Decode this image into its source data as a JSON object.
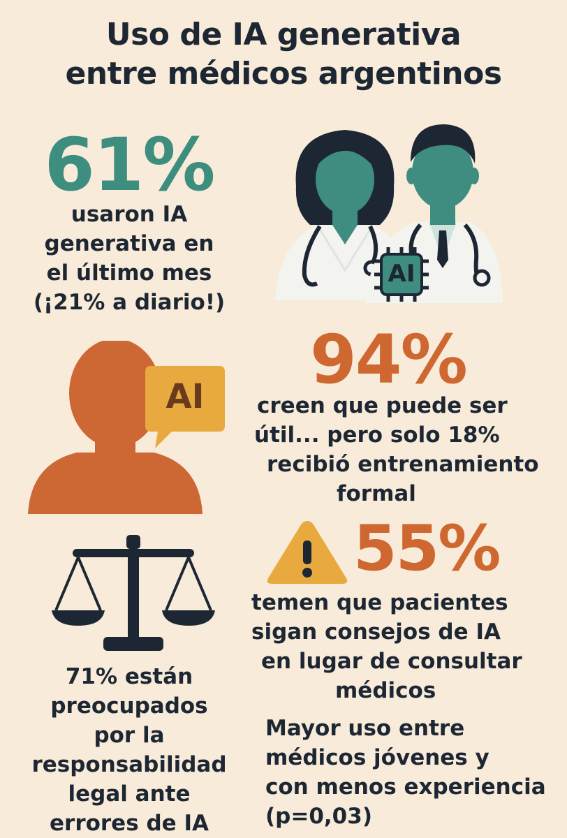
{
  "title": {
    "line1": "Uso de IA generativa",
    "line2": "entre médicos argentinos"
  },
  "stats": [
    {
      "value": "61%",
      "lines": [
        "usaron IA",
        "generativa en",
        "el último mes",
        "(¡21% a diario!)"
      ],
      "color": "#3e8e80"
    },
    {
      "value": "94%",
      "lines": [
        "creen que puede ser",
        "útil... pero solo 18%",
        "recibió entrenamiento",
        "formal"
      ],
      "color": "#cf6731"
    },
    {
      "value": "55%",
      "lines": [
        "temen que pacientes",
        "sigan consejos de IA",
        "en lugar de consultar",
        "médicos"
      ],
      "color": "#cf6731"
    },
    {
      "lines": [
        "71% están",
        "preocupados",
        "por la",
        "responsabilidad",
        "legal ante",
        "errores de IA"
      ]
    },
    {
      "lines": [
        "Mayor uso entre",
        "médicos jóvenes y",
        "con menos experiencia",
        "(p=0,03)"
      ]
    }
  ],
  "illustrations": {
    "doctors_chip_label": "AI",
    "bubble_label": "AI",
    "icons": [
      "doctors-icon",
      "ai-chip-icon",
      "person-icon",
      "speech-bubble-icon",
      "warning-icon",
      "scales-icon"
    ]
  },
  "colors": {
    "background": "#f8ebd9",
    "teal": "#3e8e80",
    "orange": "#cf6731",
    "navy": "#1d2733",
    "yellow": "#e8a93e"
  }
}
